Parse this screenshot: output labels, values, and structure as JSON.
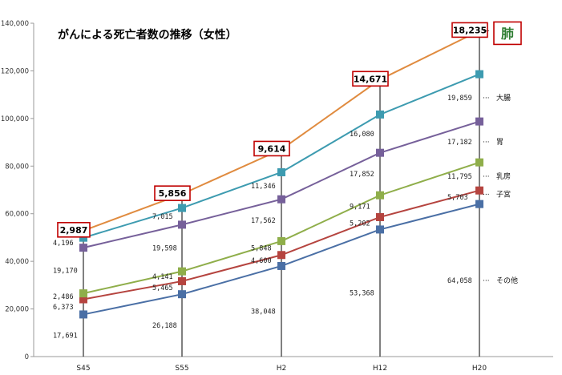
{
  "chart_data": {
    "type": "line",
    "title": "がんによる死亡者数の推移（女性）",
    "categories": [
      "S45",
      "S55",
      "H2",
      "H12",
      "H20"
    ],
    "yticks": [
      "0",
      "20,000",
      "40,000",
      "60,000",
      "80,000",
      "100,000",
      "120,000",
      "140,000"
    ],
    "ylim": [
      0,
      140000
    ],
    "grid": false,
    "series": [
      {
        "name": "その他",
        "color": "#4a6fa5",
        "marker": "square",
        "values": [
          17691,
          26188,
          38048,
          53368,
          64058
        ],
        "segment_labels": [
          "17,691",
          "26,188",
          "38,048",
          "53,368",
          "64,058"
        ]
      },
      {
        "name": "子宮",
        "color": "#b5443f",
        "marker": "square",
        "values": [
          24064,
          31653,
          42648,
          58570,
          69761
        ],
        "segment_labels": [
          "6,373",
          "5,465",
          "4,600",
          "5,202",
          "5,703"
        ]
      },
      {
        "name": "乳房",
        "color": "#8fae4a",
        "marker": "square",
        "values": [
          26550,
          35794,
          48496,
          67741,
          81556
        ],
        "segment_labels": [
          "2,486",
          "4,141",
          "5,848",
          "9,171",
          "11,795"
        ]
      },
      {
        "name": "胃",
        "color": "#76609a",
        "marker": "square",
        "values": [
          45720,
          55392,
          66058,
          85593,
          98738
        ],
        "segment_labels": [
          "19,170",
          "19,598",
          "17,562",
          "17,852",
          "17,182"
        ]
      },
      {
        "name": "大腸",
        "color": "#3d9bb0",
        "marker": "square",
        "values": [
          49916,
          62407,
          77404,
          101673,
          118597
        ],
        "segment_labels": [
          "4,196",
          "7,015",
          "11,346",
          "16,080",
          "19,859"
        ]
      },
      {
        "name": "肺",
        "color": "#e08b3f",
        "marker": "circle",
        "values": [
          52903,
          68263,
          87018,
          116344,
          136832
        ],
        "segment_labels": [
          "2,987",
          "5,856",
          "9,614",
          "14,671",
          "18,235"
        ]
      }
    ]
  }
}
